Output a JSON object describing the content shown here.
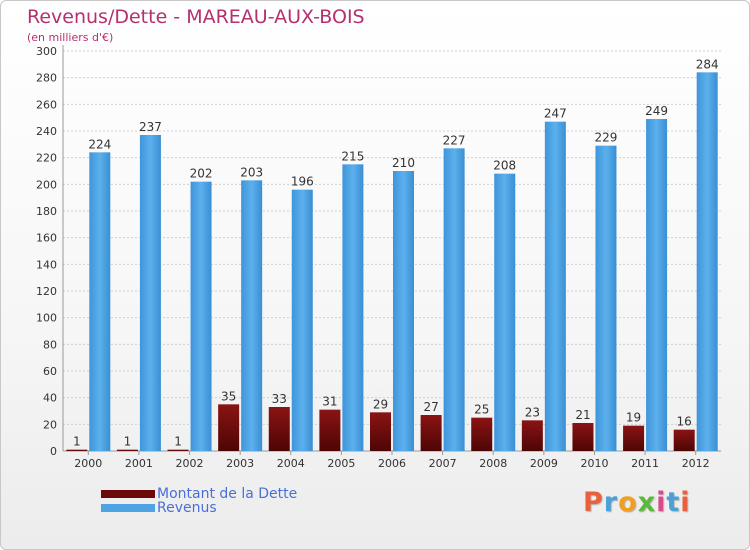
{
  "title": "Revenus/Dette - MAREAU-AUX-BOIS",
  "subtitle": "(en milliers d'€)",
  "logo": {
    "letters": [
      "P",
      "r",
      "o",
      "x",
      "i",
      "t",
      "i"
    ],
    "colors": [
      "#e8603c",
      "#4aa0d8",
      "#f0a020",
      "#5bb93a",
      "#d84a8a",
      "#4aa0d8",
      "#e8603c"
    ]
  },
  "colors": {
    "dette": "#6b0a0a",
    "revenus": "#4da3e4",
    "title": "#b4306f"
  },
  "chart_data": {
    "type": "bar",
    "categories": [
      "2000",
      "2001",
      "2002",
      "2003",
      "2004",
      "2005",
      "2006",
      "2007",
      "2008",
      "2009",
      "2010",
      "2011",
      "2012"
    ],
    "series": [
      {
        "name": "Montant de la Dette",
        "values": [
          1,
          1,
          1,
          35,
          33,
          31,
          29,
          27,
          25,
          23,
          21,
          19,
          16
        ]
      },
      {
        "name": "Revenus",
        "values": [
          224,
          237,
          202,
          203,
          196,
          215,
          210,
          227,
          208,
          247,
          229,
          249,
          284
        ]
      }
    ],
    "ylim": [
      0,
      300
    ],
    "yticks": [
      0,
      20,
      40,
      60,
      80,
      100,
      120,
      140,
      160,
      180,
      200,
      220,
      240,
      260,
      280,
      300
    ],
    "grid": true,
    "legend_position": "bottom-left"
  }
}
